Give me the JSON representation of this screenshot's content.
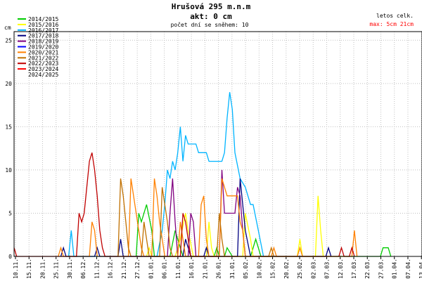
{
  "header": {
    "title": "Hrušová 295 m.n.m",
    "current": "akt: 0 cm",
    "snow_days": "počet dní se sněhem: 10",
    "stats_header": "letos  celk.",
    "stats_max": "max: 5cm  21cm"
  },
  "colors": {
    "grid": "#c0c0c0",
    "axis": "#000000",
    "title": "#000000",
    "max_text": "#ff0000"
  },
  "chart_data": {
    "type": "line",
    "ylabel": "cm",
    "ylim": [
      0,
      26
    ],
    "yticks": [
      0,
      5,
      10,
      15,
      20,
      25
    ],
    "grid": true,
    "legend_position": "top-left",
    "x_start": "10.11.",
    "x_end": "15.04.",
    "x_days": 157,
    "xtick_labels": [
      "10.11.",
      "15.11.",
      "20.11.",
      "25.11.",
      "30.11.",
      "06.12.",
      "11.12.",
      "16.12.",
      "21.12.",
      "27.12.",
      "01.01.",
      "06.01.",
      "11.01.",
      "16.01.",
      "21.01.",
      "26.01.",
      "31.01.",
      "05.02.",
      "10.02.",
      "15.02.",
      "20.02.",
      "25.02.",
      "02.03.",
      "07.03.",
      "12.03.",
      "17.03.",
      "22.03.",
      "27.03.",
      "01.04.",
      "07.04.",
      "13.04."
    ],
    "series": [
      {
        "name": "2014/2015",
        "color": "#00cc00",
        "points": [
          [
            47,
            0
          ],
          [
            48,
            5
          ],
          [
            49,
            4
          ],
          [
            51,
            6
          ],
          [
            53,
            3
          ],
          [
            54,
            0
          ],
          [
            60,
            0
          ],
          [
            62,
            3
          ],
          [
            63,
            2
          ],
          [
            65,
            0
          ],
          [
            77,
            0
          ],
          [
            78,
            1
          ],
          [
            79,
            0
          ],
          [
            81,
            0
          ],
          [
            82,
            1
          ],
          [
            84,
            0
          ],
          [
            91,
            0
          ],
          [
            93,
            2
          ],
          [
            95,
            0
          ],
          [
            141,
            0
          ],
          [
            142,
            1
          ],
          [
            144,
            1
          ],
          [
            145,
            0
          ]
        ]
      },
      {
        "name": "2015/2016",
        "color": "#ffff00",
        "points": [
          [
            51,
            0
          ],
          [
            52,
            1
          ],
          [
            53,
            0
          ],
          [
            62,
            0
          ],
          [
            64,
            2
          ],
          [
            66,
            5
          ],
          [
            67,
            3
          ],
          [
            69,
            0
          ],
          [
            74,
            0
          ],
          [
            75,
            4
          ],
          [
            76,
            1
          ],
          [
            77,
            0
          ],
          [
            88,
            0
          ],
          [
            89,
            5
          ],
          [
            91,
            2
          ],
          [
            92,
            0
          ],
          [
            109,
            0
          ],
          [
            110,
            2
          ],
          [
            111,
            0
          ],
          [
            116,
            0
          ],
          [
            117,
            7
          ],
          [
            118,
            3
          ],
          [
            119,
            0
          ]
        ]
      },
      {
        "name": "2016/2017",
        "color": "#00b4ff",
        "points": [
          [
            21,
            0
          ],
          [
            22,
            3
          ],
          [
            23,
            0
          ],
          [
            55,
            0
          ],
          [
            57,
            3
          ],
          [
            58,
            6
          ],
          [
            59,
            10
          ],
          [
            60,
            9
          ],
          [
            61,
            11
          ],
          [
            62,
            10
          ],
          [
            63,
            12
          ],
          [
            64,
            15
          ],
          [
            65,
            11
          ],
          [
            66,
            14
          ],
          [
            67,
            13
          ],
          [
            70,
            13
          ],
          [
            71,
            12
          ],
          [
            74,
            12
          ],
          [
            75,
            11
          ],
          [
            80,
            11
          ],
          [
            81,
            12
          ],
          [
            82,
            16
          ],
          [
            83,
            19
          ],
          [
            84,
            17
          ],
          [
            85,
            12
          ],
          [
            87,
            9
          ],
          [
            89,
            8
          ],
          [
            91,
            6
          ],
          [
            92,
            6
          ],
          [
            94,
            3
          ],
          [
            96,
            0
          ]
        ]
      },
      {
        "name": "2017/2018",
        "color": "#000080",
        "points": [
          [
            18,
            0
          ],
          [
            19,
            1
          ],
          [
            20,
            0
          ],
          [
            31,
            0
          ],
          [
            32,
            1
          ],
          [
            33,
            0
          ],
          [
            40,
            0
          ],
          [
            41,
            2
          ],
          [
            42,
            0
          ],
          [
            65,
            0
          ],
          [
            66,
            2
          ],
          [
            67,
            1
          ],
          [
            68,
            0
          ],
          [
            73,
            0
          ],
          [
            74,
            1
          ],
          [
            75,
            0
          ],
          [
            86,
            0
          ],
          [
            87,
            9
          ],
          [
            88,
            6
          ],
          [
            89,
            3
          ],
          [
            91,
            0
          ],
          [
            120,
            0
          ],
          [
            121,
            1
          ],
          [
            122,
            0
          ]
        ]
      },
      {
        "name": "2018/2019",
        "color": "#800080",
        "points": [
          [
            59,
            0
          ],
          [
            60,
            5
          ],
          [
            61,
            9
          ],
          [
            62,
            4
          ],
          [
            63,
            0
          ],
          [
            67,
            0
          ],
          [
            68,
            5
          ],
          [
            69,
            4
          ],
          [
            70,
            0
          ],
          [
            79,
            0
          ],
          [
            80,
            10
          ],
          [
            81,
            5
          ],
          [
            85,
            5
          ],
          [
            86,
            8
          ],
          [
            87,
            7
          ],
          [
            88,
            3
          ],
          [
            89,
            0
          ]
        ]
      },
      {
        "name": "2019/2020",
        "color": "#0000ff",
        "points": []
      },
      {
        "name": "2020/2021",
        "color": "#ff8000",
        "points": [
          [
            17,
            0
          ],
          [
            18,
            1
          ],
          [
            19,
            0
          ],
          [
            29,
            0
          ],
          [
            30,
            4
          ],
          [
            31,
            3
          ],
          [
            32,
            0
          ],
          [
            44,
            0
          ],
          [
            45,
            9
          ],
          [
            46,
            7
          ],
          [
            47,
            5
          ],
          [
            48,
            3
          ],
          [
            49,
            1
          ],
          [
            50,
            0
          ],
          [
            53,
            0
          ],
          [
            54,
            9
          ],
          [
            55,
            7
          ],
          [
            56,
            4
          ],
          [
            57,
            2
          ],
          [
            58,
            0
          ],
          [
            63,
            0
          ],
          [
            64,
            4
          ],
          [
            65,
            2
          ],
          [
            66,
            0
          ],
          [
            71,
            0
          ],
          [
            72,
            6
          ],
          [
            73,
            7
          ],
          [
            74,
            2
          ],
          [
            75,
            0
          ],
          [
            79,
            0
          ],
          [
            80,
            9
          ],
          [
            81,
            8
          ],
          [
            82,
            7
          ],
          [
            86,
            7
          ],
          [
            87,
            4
          ],
          [
            88,
            3
          ],
          [
            89,
            0
          ],
          [
            99,
            0
          ],
          [
            100,
            1
          ],
          [
            101,
            0
          ],
          [
            109,
            0
          ],
          [
            110,
            1
          ],
          [
            111,
            0
          ],
          [
            130,
            0
          ],
          [
            131,
            3
          ],
          [
            132,
            0
          ]
        ]
      },
      {
        "name": "2021/2022",
        "color": "#c07000",
        "points": [
          [
            40,
            0
          ],
          [
            41,
            9
          ],
          [
            42,
            7
          ],
          [
            43,
            4
          ],
          [
            44,
            1
          ],
          [
            45,
            0
          ],
          [
            49,
            0
          ],
          [
            50,
            4
          ],
          [
            51,
            2
          ],
          [
            52,
            0
          ],
          [
            56,
            0
          ],
          [
            57,
            8
          ],
          [
            58,
            6
          ],
          [
            59,
            4
          ],
          [
            60,
            1
          ],
          [
            61,
            0
          ],
          [
            78,
            0
          ],
          [
            79,
            5
          ],
          [
            80,
            2
          ],
          [
            81,
            0
          ],
          [
            98,
            0
          ],
          [
            99,
            1
          ],
          [
            100,
            0
          ]
        ]
      },
      {
        "name": "2022/2023",
        "color": "#c00000",
        "points": [
          [
            0,
            1
          ],
          [
            1,
            0
          ],
          [
            24,
            0
          ],
          [
            25,
            5
          ],
          [
            26,
            4
          ],
          [
            27,
            5
          ],
          [
            28,
            8
          ],
          [
            29,
            11
          ],
          [
            30,
            12
          ],
          [
            31,
            10
          ],
          [
            32,
            7
          ],
          [
            33,
            3
          ],
          [
            34,
            1
          ],
          [
            35,
            0
          ],
          [
            64,
            0
          ],
          [
            65,
            5
          ],
          [
            66,
            4
          ],
          [
            67,
            2
          ],
          [
            68,
            0
          ],
          [
            125,
            0
          ],
          [
            126,
            1
          ],
          [
            127,
            0
          ],
          [
            129,
            0
          ],
          [
            130,
            1
          ],
          [
            131,
            0
          ]
        ]
      },
      {
        "name": "2023/2024",
        "color": "#ff0000",
        "points": []
      },
      {
        "name": "2024/2025",
        "color": "#ffffff",
        "points": []
      }
    ]
  }
}
